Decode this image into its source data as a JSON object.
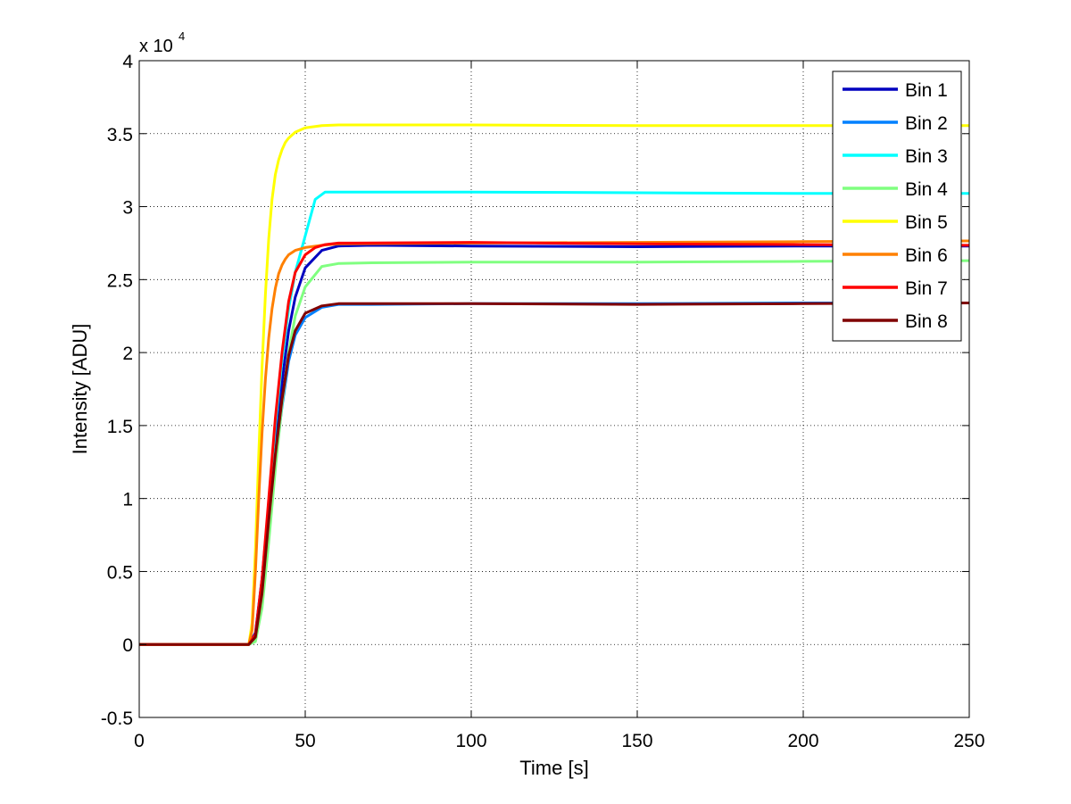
{
  "chart_data": {
    "type": "line",
    "title": "",
    "xlabel": "Time [s]",
    "ylabel": "Intensity [ADU]",
    "xlim": [
      0,
      250
    ],
    "ylim": [
      -5000,
      40000
    ],
    "xticks": [
      0,
      50,
      100,
      150,
      200,
      250
    ],
    "yticks": [
      -5000,
      0,
      5000,
      10000,
      15000,
      20000,
      25000,
      30000,
      35000,
      40000
    ],
    "xtick_labels": [
      "0",
      "50",
      "100",
      "150",
      "200",
      "250"
    ],
    "ytick_labels": [
      "-0.5",
      "0",
      "0.5",
      "1",
      "1.5",
      "2",
      "2.5",
      "3",
      "3.5",
      "4"
    ],
    "y_multiplier_label": "x 10",
    "y_multiplier_exponent": "4",
    "grid": true,
    "legend_position": "top-right",
    "series": [
      {
        "name": "Bin 1",
        "color": "#0000bf",
        "x": [
          0,
          33,
          35,
          37,
          39,
          41,
          43,
          45,
          47,
          50,
          55,
          60,
          70,
          100,
          150,
          200,
          250
        ],
        "y": [
          0,
          0,
          800,
          4500,
          9500,
          14000,
          18000,
          21500,
          23800,
          25800,
          27000,
          27300,
          27350,
          27300,
          27250,
          27300,
          27300
        ]
      },
      {
        "name": "Bin 2",
        "color": "#0080ff",
        "x": [
          0,
          33,
          35,
          37,
          39,
          41,
          43,
          45,
          47,
          50,
          55,
          60,
          70,
          100,
          150,
          200,
          250
        ],
        "y": [
          0,
          0,
          500,
          3500,
          8000,
          12500,
          16300,
          19400,
          21200,
          22400,
          23100,
          23300,
          23300,
          23350,
          23350,
          23400,
          23400
        ]
      },
      {
        "name": "Bin 3",
        "color": "#00ffff",
        "x": [
          0,
          33,
          35,
          37,
          39,
          41,
          43,
          45,
          47,
          50,
          53,
          56,
          60,
          100,
          150,
          200,
          250
        ],
        "y": [
          0,
          0,
          400,
          4000,
          9500,
          15000,
          19500,
          23000,
          25500,
          28000,
          30500,
          31000,
          31000,
          31000,
          30950,
          30900,
          30900
        ]
      },
      {
        "name": "Bin 4",
        "color": "#80ff80",
        "x": [
          0,
          33,
          35,
          37,
          39,
          41,
          43,
          45,
          47,
          50,
          55,
          60,
          70,
          100,
          150,
          200,
          250
        ],
        "y": [
          0,
          0,
          200,
          2500,
          7000,
          12000,
          16500,
          20000,
          22500,
          24500,
          25900,
          26100,
          26150,
          26200,
          26200,
          26250,
          26300
        ]
      },
      {
        "name": "Bin 5",
        "color": "#ffff00",
        "x": [
          0,
          33,
          34,
          35,
          36,
          37,
          38,
          39,
          40,
          41,
          42,
          43,
          44,
          45,
          47,
          50,
          55,
          60,
          100,
          150,
          200,
          250
        ],
        "y": [
          0,
          0,
          1500,
          6500,
          13000,
          19000,
          24000,
          27800,
          30500,
          32200,
          33200,
          33900,
          34400,
          34700,
          35100,
          35400,
          35550,
          35600,
          35600,
          35550,
          35550,
          35550
        ]
      },
      {
        "name": "Bin 6",
        "color": "#ff8000",
        "x": [
          0,
          33,
          34,
          35,
          36,
          37,
          38,
          39,
          40,
          41,
          42,
          43,
          44,
          45,
          47,
          50,
          55,
          60,
          100,
          150,
          200,
          250
        ],
        "y": [
          0,
          0,
          1000,
          5000,
          10000,
          14500,
          18200,
          21000,
          23000,
          24400,
          25400,
          26000,
          26400,
          26700,
          27000,
          27200,
          27350,
          27450,
          27500,
          27550,
          27600,
          27650
        ]
      },
      {
        "name": "Bin 7",
        "color": "#ff0000",
        "x": [
          0,
          33,
          35,
          37,
          39,
          41,
          43,
          45,
          47,
          50,
          53,
          56,
          60,
          65,
          100,
          150,
          200,
          250
        ],
        "y": [
          0,
          0,
          700,
          4500,
          10000,
          15500,
          20000,
          23500,
          25500,
          26700,
          27200,
          27400,
          27500,
          27500,
          27550,
          27450,
          27400,
          27350
        ]
      },
      {
        "name": "Bin 8",
        "color": "#800000",
        "x": [
          0,
          33,
          35,
          37,
          39,
          41,
          43,
          45,
          47,
          50,
          55,
          60,
          70,
          100,
          150,
          200,
          250
        ],
        "y": [
          0,
          0,
          500,
          3500,
          8500,
          13000,
          16800,
          19800,
          21500,
          22700,
          23200,
          23350,
          23350,
          23350,
          23300,
          23350,
          23400
        ]
      }
    ]
  }
}
